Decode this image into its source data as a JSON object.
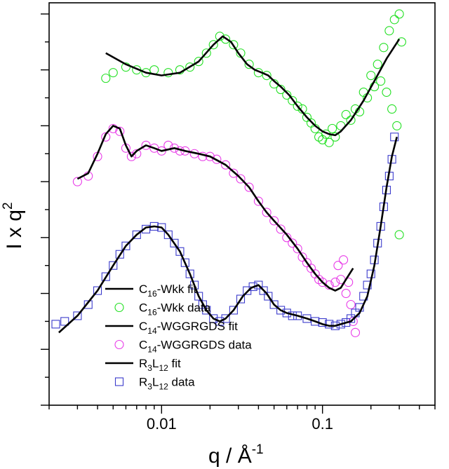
{
  "chart_data": {
    "type": "scatter",
    "xscale": "log",
    "xlim": [
      0.002,
      0.5
    ],
    "ylim": [
      0,
      7.2
    ],
    "y_ticks_labeled": false,
    "xlabel": {
      "main": "q / Å",
      "sup": "-1"
    },
    "ylabel": {
      "main": "I x q",
      "sup": "2"
    },
    "xtick_labels": [
      {
        "value": 0.01,
        "label": "0.01"
      },
      {
        "value": 0.1,
        "label": "0.1"
      }
    ],
    "legend_position": "bottom-left",
    "colors": {
      "c16": "#22e022",
      "c14": "#e83be8",
      "r3l12": "#3b3bcc",
      "fit": "#000000"
    },
    "series": [
      {
        "name": "C16-Wkk",
        "color": "#22e022",
        "marker": "circle",
        "fit": [
          [
            0.0045,
            6.3
          ],
          [
            0.006,
            6.1
          ],
          [
            0.008,
            5.95
          ],
          [
            0.01,
            5.9
          ],
          [
            0.013,
            5.95
          ],
          [
            0.017,
            6.15
          ],
          [
            0.021,
            6.45
          ],
          [
            0.024,
            6.6
          ],
          [
            0.027,
            6.5
          ],
          [
            0.03,
            6.3
          ],
          [
            0.034,
            6.1
          ],
          [
            0.038,
            6.0
          ],
          [
            0.042,
            5.95
          ],
          [
            0.046,
            5.9
          ],
          [
            0.05,
            5.8
          ],
          [
            0.055,
            5.7
          ],
          [
            0.062,
            5.55
          ],
          [
            0.07,
            5.35
          ],
          [
            0.08,
            5.15
          ],
          [
            0.09,
            5.0
          ],
          [
            0.1,
            4.9
          ],
          [
            0.11,
            4.85
          ],
          [
            0.12,
            4.83
          ],
          [
            0.13,
            4.9
          ],
          [
            0.15,
            5.1
          ],
          [
            0.18,
            5.45
          ],
          [
            0.21,
            5.8
          ],
          [
            0.25,
            6.2
          ],
          [
            0.3,
            6.55
          ]
        ],
        "data": [
          [
            0.0045,
            5.85
          ],
          [
            0.005,
            5.95
          ],
          [
            0.006,
            6.05
          ],
          [
            0.007,
            6.0
          ],
          [
            0.008,
            5.95
          ],
          [
            0.009,
            6.0
          ],
          [
            0.011,
            5.95
          ],
          [
            0.013,
            6.0
          ],
          [
            0.015,
            6.05
          ],
          [
            0.017,
            6.15
          ],
          [
            0.019,
            6.3
          ],
          [
            0.021,
            6.45
          ],
          [
            0.023,
            6.6
          ],
          [
            0.025,
            6.55
          ],
          [
            0.028,
            6.45
          ],
          [
            0.031,
            6.3
          ],
          [
            0.035,
            6.1
          ],
          [
            0.04,
            5.95
          ],
          [
            0.045,
            5.9
          ],
          [
            0.05,
            5.75
          ],
          [
            0.055,
            5.65
          ],
          [
            0.06,
            5.55
          ],
          [
            0.065,
            5.45
          ],
          [
            0.07,
            5.35
          ],
          [
            0.075,
            5.3
          ],
          [
            0.08,
            5.15
          ],
          [
            0.085,
            5.05
          ],
          [
            0.09,
            4.95
          ],
          [
            0.095,
            4.8
          ],
          [
            0.1,
            4.75
          ],
          [
            0.105,
            4.85
          ],
          [
            0.11,
            4.7
          ],
          [
            0.115,
            4.95
          ],
          [
            0.12,
            4.8
          ],
          [
            0.13,
            5.0
          ],
          [
            0.14,
            5.2
          ],
          [
            0.15,
            5.1
          ],
          [
            0.16,
            5.3
          ],
          [
            0.17,
            5.25
          ],
          [
            0.18,
            5.6
          ],
          [
            0.19,
            5.5
          ],
          [
            0.2,
            5.9
          ],
          [
            0.21,
            5.7
          ],
          [
            0.22,
            6.1
          ],
          [
            0.23,
            5.8
          ],
          [
            0.24,
            6.4
          ],
          [
            0.25,
            5.6
          ],
          [
            0.26,
            6.7
          ],
          [
            0.27,
            5.3
          ],
          [
            0.28,
            6.9
          ],
          [
            0.29,
            5.0
          ],
          [
            0.3,
            7.0
          ],
          [
            0.31,
            6.5
          ],
          [
            0.3,
            3.05
          ]
        ]
      },
      {
        "name": "C14-WGGRGDS",
        "color": "#e83be8",
        "marker": "circle",
        "fit": [
          [
            0.003,
            4.05
          ],
          [
            0.0035,
            4.15
          ],
          [
            0.004,
            4.5
          ],
          [
            0.0045,
            4.85
          ],
          [
            0.005,
            5.0
          ],
          [
            0.0055,
            4.95
          ],
          [
            0.006,
            4.65
          ],
          [
            0.0065,
            4.45
          ],
          [
            0.007,
            4.55
          ],
          [
            0.008,
            4.65
          ],
          [
            0.009,
            4.6
          ],
          [
            0.01,
            4.55
          ],
          [
            0.012,
            4.6
          ],
          [
            0.014,
            4.55
          ],
          [
            0.017,
            4.5
          ],
          [
            0.02,
            4.45
          ],
          [
            0.025,
            4.3
          ],
          [
            0.03,
            4.1
          ],
          [
            0.035,
            3.9
          ],
          [
            0.04,
            3.65
          ],
          [
            0.045,
            3.45
          ],
          [
            0.05,
            3.3
          ],
          [
            0.06,
            3.05
          ],
          [
            0.07,
            2.8
          ],
          [
            0.08,
            2.55
          ],
          [
            0.09,
            2.35
          ],
          [
            0.1,
            2.2
          ],
          [
            0.11,
            2.1
          ],
          [
            0.12,
            2.05
          ],
          [
            0.13,
            2.1
          ],
          [
            0.14,
            2.25
          ],
          [
            0.155,
            2.45
          ]
        ],
        "data": [
          [
            0.003,
            4.0
          ],
          [
            0.0035,
            4.1
          ],
          [
            0.004,
            4.45
          ],
          [
            0.0045,
            4.8
          ],
          [
            0.005,
            4.95
          ],
          [
            0.0055,
            4.9
          ],
          [
            0.006,
            4.6
          ],
          [
            0.0065,
            4.45
          ],
          [
            0.007,
            4.5
          ],
          [
            0.008,
            4.65
          ],
          [
            0.009,
            4.6
          ],
          [
            0.01,
            4.55
          ],
          [
            0.011,
            4.65
          ],
          [
            0.012,
            4.6
          ],
          [
            0.013,
            4.55
          ],
          [
            0.014,
            4.55
          ],
          [
            0.016,
            4.5
          ],
          [
            0.018,
            4.45
          ],
          [
            0.02,
            4.45
          ],
          [
            0.022,
            4.4
          ],
          [
            0.025,
            4.3
          ],
          [
            0.028,
            4.15
          ],
          [
            0.031,
            4.05
          ],
          [
            0.035,
            3.9
          ],
          [
            0.04,
            3.65
          ],
          [
            0.045,
            3.45
          ],
          [
            0.05,
            3.3
          ],
          [
            0.055,
            3.15
          ],
          [
            0.06,
            3.0
          ],
          [
            0.065,
            2.9
          ],
          [
            0.07,
            2.8
          ],
          [
            0.075,
            2.65
          ],
          [
            0.08,
            2.55
          ],
          [
            0.085,
            2.45
          ],
          [
            0.09,
            2.35
          ],
          [
            0.095,
            2.25
          ],
          [
            0.1,
            2.2
          ],
          [
            0.11,
            2.15
          ],
          [
            0.12,
            2.2
          ],
          [
            0.125,
            2.5
          ],
          [
            0.13,
            2.25
          ],
          [
            0.135,
            2.6
          ],
          [
            0.14,
            2.0
          ],
          [
            0.145,
            2.2
          ],
          [
            0.15,
            1.8
          ],
          [
            0.155,
            1.5
          ],
          [
            0.16,
            1.3
          ]
        ]
      },
      {
        "name": "R3L12",
        "color": "#3b3bcc",
        "marker": "square",
        "fit": [
          [
            0.0023,
            1.3
          ],
          [
            0.003,
            1.6
          ],
          [
            0.004,
            2.05
          ],
          [
            0.005,
            2.5
          ],
          [
            0.006,
            2.85
          ],
          [
            0.007,
            3.05
          ],
          [
            0.008,
            3.18
          ],
          [
            0.009,
            3.2
          ],
          [
            0.01,
            3.18
          ],
          [
            0.011,
            3.05
          ],
          [
            0.013,
            2.75
          ],
          [
            0.015,
            2.35
          ],
          [
            0.017,
            1.95
          ],
          [
            0.019,
            1.7
          ],
          [
            0.021,
            1.55
          ],
          [
            0.023,
            1.5
          ],
          [
            0.025,
            1.55
          ],
          [
            0.028,
            1.7
          ],
          [
            0.032,
            1.95
          ],
          [
            0.036,
            2.1
          ],
          [
            0.04,
            2.15
          ],
          [
            0.045,
            2.0
          ],
          [
            0.05,
            1.8
          ],
          [
            0.055,
            1.7
          ],
          [
            0.06,
            1.65
          ],
          [
            0.07,
            1.6
          ],
          [
            0.08,
            1.55
          ],
          [
            0.09,
            1.5
          ],
          [
            0.1,
            1.45
          ],
          [
            0.11,
            1.42
          ],
          [
            0.12,
            1.42
          ],
          [
            0.13,
            1.45
          ],
          [
            0.15,
            1.5
          ],
          [
            0.17,
            1.65
          ],
          [
            0.19,
            1.95
          ],
          [
            0.21,
            2.5
          ],
          [
            0.23,
            3.2
          ],
          [
            0.25,
            3.9
          ],
          [
            0.27,
            4.45
          ],
          [
            0.29,
            4.8
          ]
        ],
        "data": [
          [
            0.0022,
            1.45
          ],
          [
            0.0025,
            1.5
          ],
          [
            0.003,
            1.6
          ],
          [
            0.0035,
            1.8
          ],
          [
            0.004,
            2.05
          ],
          [
            0.0045,
            2.3
          ],
          [
            0.005,
            2.5
          ],
          [
            0.0055,
            2.7
          ],
          [
            0.006,
            2.85
          ],
          [
            0.007,
            3.05
          ],
          [
            0.008,
            3.15
          ],
          [
            0.009,
            3.2
          ],
          [
            0.01,
            3.18
          ],
          [
            0.011,
            3.05
          ],
          [
            0.012,
            2.9
          ],
          [
            0.013,
            2.75
          ],
          [
            0.014,
            2.55
          ],
          [
            0.015,
            2.35
          ],
          [
            0.016,
            2.15
          ],
          [
            0.017,
            1.95
          ],
          [
            0.018,
            1.8
          ],
          [
            0.019,
            1.7
          ],
          [
            0.021,
            1.55
          ],
          [
            0.023,
            1.5
          ],
          [
            0.025,
            1.55
          ],
          [
            0.028,
            1.7
          ],
          [
            0.031,
            1.9
          ],
          [
            0.034,
            2.05
          ],
          [
            0.037,
            2.12
          ],
          [
            0.04,
            2.15
          ],
          [
            0.043,
            2.05
          ],
          [
            0.046,
            1.95
          ],
          [
            0.05,
            1.8
          ],
          [
            0.055,
            1.7
          ],
          [
            0.06,
            1.65
          ],
          [
            0.065,
            1.6
          ],
          [
            0.07,
            1.6
          ],
          [
            0.08,
            1.55
          ],
          [
            0.09,
            1.5
          ],
          [
            0.1,
            1.48
          ],
          [
            0.11,
            1.45
          ],
          [
            0.12,
            1.42
          ],
          [
            0.13,
            1.45
          ],
          [
            0.14,
            1.48
          ],
          [
            0.15,
            1.55
          ],
          [
            0.16,
            1.65
          ],
          [
            0.17,
            1.75
          ],
          [
            0.18,
            1.95
          ],
          [
            0.19,
            2.15
          ],
          [
            0.2,
            2.35
          ],
          [
            0.21,
            2.6
          ],
          [
            0.22,
            2.9
          ],
          [
            0.23,
            3.2
          ],
          [
            0.24,
            3.55
          ],
          [
            0.25,
            3.85
          ],
          [
            0.26,
            4.1
          ],
          [
            0.27,
            4.4
          ],
          [
            0.28,
            4.8
          ]
        ]
      }
    ],
    "legend": [
      {
        "kind": "line",
        "base": "C",
        "sub": "16",
        "rest": "-Wkk fit"
      },
      {
        "kind": "circle",
        "color": "#22e022",
        "base": "C",
        "sub": "16",
        "rest": "-Wkk data"
      },
      {
        "kind": "line",
        "base": "C",
        "sub": "14",
        "rest": "-WGGRGDS fit"
      },
      {
        "kind": "circle",
        "color": "#e83be8",
        "base": "C",
        "sub": "14",
        "rest": "-WGGRGDS data"
      },
      {
        "kind": "line",
        "base": "R",
        "sub": "3",
        "mid": "L",
        "sub2": "12",
        "rest": " fit"
      },
      {
        "kind": "square",
        "color": "#3b3bcc",
        "base": "R",
        "sub": "3",
        "mid": "L",
        "sub2": "12",
        "rest": " data"
      }
    ]
  }
}
